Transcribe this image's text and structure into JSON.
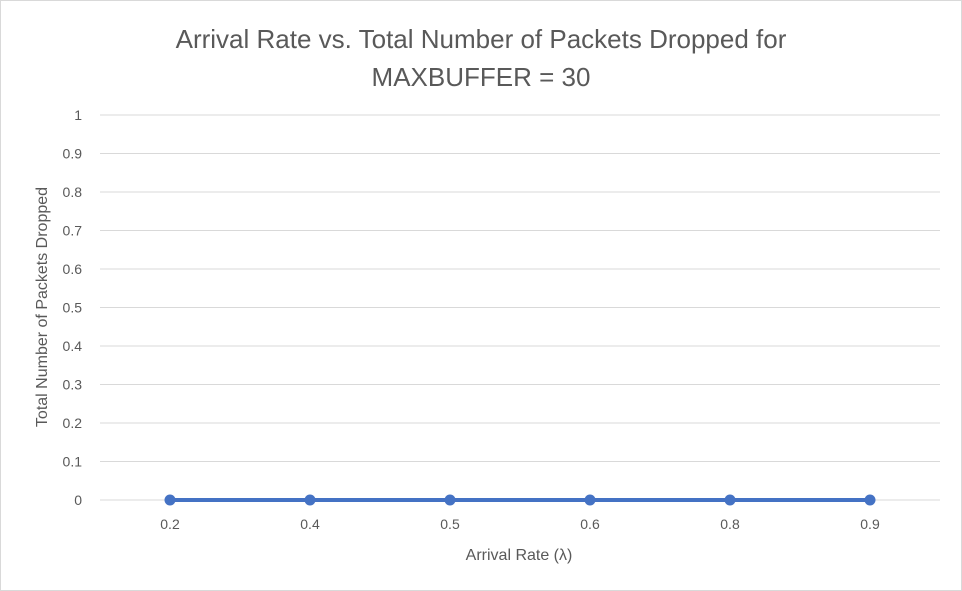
{
  "chart_data": {
    "type": "line",
    "title_line1": "Arrival Rate vs. Total Number of Packets Dropped for",
    "title_line2": "MAXBUFFER = 30",
    "xlabel": "Arrival Rate (λ)",
    "ylabel": "Total Number of Packets Dropped",
    "categories": [
      "0.2",
      "0.4",
      "0.5",
      "0.6",
      "0.8",
      "0.9"
    ],
    "series": [
      {
        "values": [
          0,
          0,
          0,
          0,
          0,
          0
        ],
        "color": "#4472c4"
      }
    ],
    "ylim": [
      0,
      1
    ],
    "yticks": [
      "0",
      "0.1",
      "0.2",
      "0.3",
      "0.4",
      "0.5",
      "0.6",
      "0.7",
      "0.8",
      "0.9",
      "1"
    ],
    "grid": true,
    "legend": "none",
    "gridline_color": "#d9d9d9"
  }
}
